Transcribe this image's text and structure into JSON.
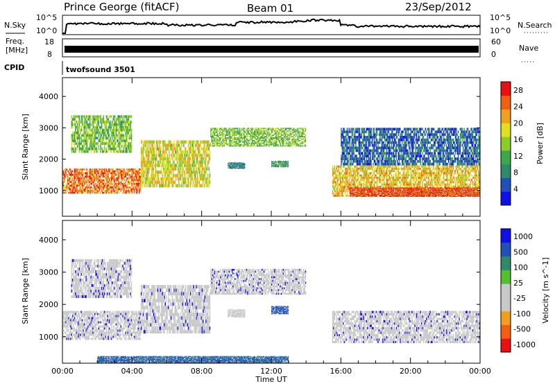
{
  "header": {
    "station": "Prince George (fitACF)",
    "beam": "Beam 01",
    "date": "23/Sep/2012"
  },
  "noise_panel": {
    "left_label": "N.Sky",
    "left_ticks": [
      "10^5",
      "10^0"
    ],
    "right_label": "N.Search",
    "right_ticks": [
      "10^5",
      "10^0"
    ]
  },
  "freq_panel": {
    "left_label_1": "Freq.",
    "left_label_2": "[MHz]",
    "left_ticks": [
      "18",
      "8"
    ],
    "right_label": "Nave",
    "right_ticks": [
      "60",
      "0"
    ]
  },
  "cpid": {
    "label": "CPID",
    "program": "twofsound 3501"
  },
  "colors": {
    "power_scale": [
      "#1010e6",
      "#2050b8",
      "#2e8a6a",
      "#3aa84a",
      "#8ccc2a",
      "#e0e020",
      "#f0a020",
      "#f06010",
      "#e81010"
    ],
    "velocity_scale": [
      "#e81010",
      "#f06010",
      "#f0a020",
      "#c8c8c8",
      "#c8c8c8",
      "#50c030",
      "#2e8a6a",
      "#2050b8",
      "#1010e6"
    ],
    "velocity_ground": "#c8c8c8"
  },
  "chart_data": [
    {
      "type": "heatmap",
      "title": "",
      "xlabel": "Time UT",
      "ylabel": "Slant Range [km]",
      "xlim": [
        "00:00",
        "24:00"
      ],
      "ylim": [
        180,
        4600
      ],
      "x_ticks": [
        "00:00",
        "04:00",
        "08:00",
        "12:00",
        "16:00",
        "20:00",
        "00:00"
      ],
      "y_ticks": [
        1000,
        2000,
        3000,
        4000
      ],
      "colorbar": {
        "label": "Power [dB]",
        "ticks": [
          4,
          8,
          12,
          16,
          20,
          24,
          28
        ],
        "range": [
          0,
          30
        ]
      },
      "bands": [
        {
          "t_start": 0.0,
          "t_end": 4.5,
          "r_low": 900,
          "r_high": 1700,
          "power_db": 24
        },
        {
          "t_start": 0.5,
          "t_end": 4.0,
          "r_low": 2200,
          "r_high": 3400,
          "power_db": 14
        },
        {
          "t_start": 4.5,
          "t_end": 8.5,
          "r_low": 1100,
          "r_high": 2600,
          "power_db": 18
        },
        {
          "t_start": 8.5,
          "t_end": 14.0,
          "r_low": 2400,
          "r_high": 3000,
          "power_db": 14
        },
        {
          "t_start": 9.5,
          "t_end": 10.5,
          "r_low": 1700,
          "r_high": 1900,
          "power_db": 8
        },
        {
          "t_start": 12.0,
          "t_end": 13.0,
          "r_low": 1750,
          "r_high": 1950,
          "power_db": 10
        },
        {
          "t_start": 15.5,
          "t_end": 24.0,
          "r_low": 800,
          "r_high": 1800,
          "power_db": 20
        },
        {
          "t_start": 16.5,
          "t_end": 24.0,
          "r_low": 800,
          "r_high": 1100,
          "power_db": 28
        },
        {
          "t_start": 16.0,
          "t_end": 24.0,
          "r_low": 1800,
          "r_high": 3000,
          "power_db": 6
        }
      ]
    },
    {
      "type": "heatmap",
      "title": "",
      "xlabel": "Time UT",
      "ylabel": "Slant Range [km]",
      "xlim": [
        "00:00",
        "24:00"
      ],
      "ylim": [
        180,
        4600
      ],
      "x_ticks": [
        "00:00",
        "04:00",
        "08:00",
        "12:00",
        "16:00",
        "20:00",
        "00:00"
      ],
      "y_ticks": [
        1000,
        2000,
        3000,
        4000
      ],
      "colorbar": {
        "label": "Velocity [m s^-1]",
        "ticks": [
          1000,
          500,
          100,
          25,
          -25,
          -100,
          -500,
          -1000
        ]
      },
      "bands": [
        {
          "t_start": 0.0,
          "t_end": 4.5,
          "r_low": 900,
          "r_high": 1800,
          "velocity": 0
        },
        {
          "t_start": 0.5,
          "t_end": 4.0,
          "r_low": 2200,
          "r_high": 3400,
          "velocity": 0
        },
        {
          "t_start": 4.5,
          "t_end": 8.5,
          "r_low": 1100,
          "r_high": 2600,
          "velocity": 0
        },
        {
          "t_start": 8.5,
          "t_end": 14.0,
          "r_low": 2300,
          "r_high": 3100,
          "velocity": 0
        },
        {
          "t_start": 9.5,
          "t_end": 10.5,
          "r_low": 1600,
          "r_high": 1850,
          "velocity": -300
        },
        {
          "t_start": 12.0,
          "t_end": 13.0,
          "r_low": 1700,
          "r_high": 1950,
          "velocity": 150
        },
        {
          "t_start": 15.5,
          "t_end": 24.0,
          "r_low": 800,
          "r_high": 1800,
          "velocity": 0
        },
        {
          "t_start": 2.0,
          "t_end": 13.0,
          "r_low": 180,
          "r_high": 400,
          "velocity": 120
        }
      ]
    }
  ]
}
